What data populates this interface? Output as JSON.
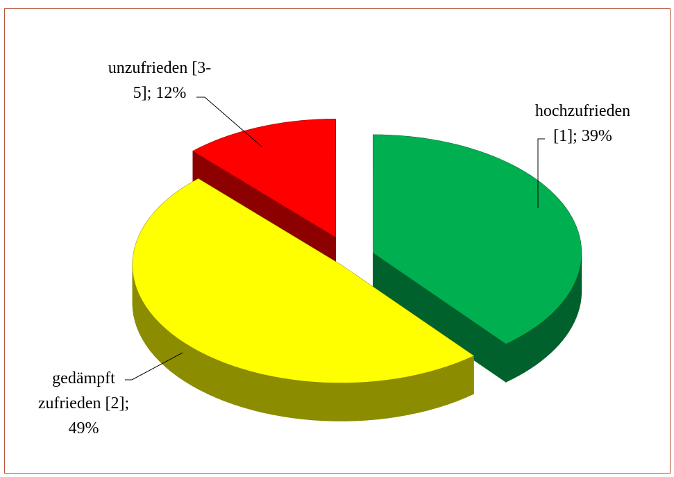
{
  "chart_data": {
    "type": "pie3d",
    "values": [
      39,
      49,
      12
    ],
    "value_labels": [
      "hochzufrieden [1]; 39%",
      "gedämpft zufrieden [2]; 49%",
      "unzufrieden [3-5]; 12%"
    ],
    "colors": [
      "#00b050",
      "#ffff00",
      "#ff0000"
    ]
  }
}
